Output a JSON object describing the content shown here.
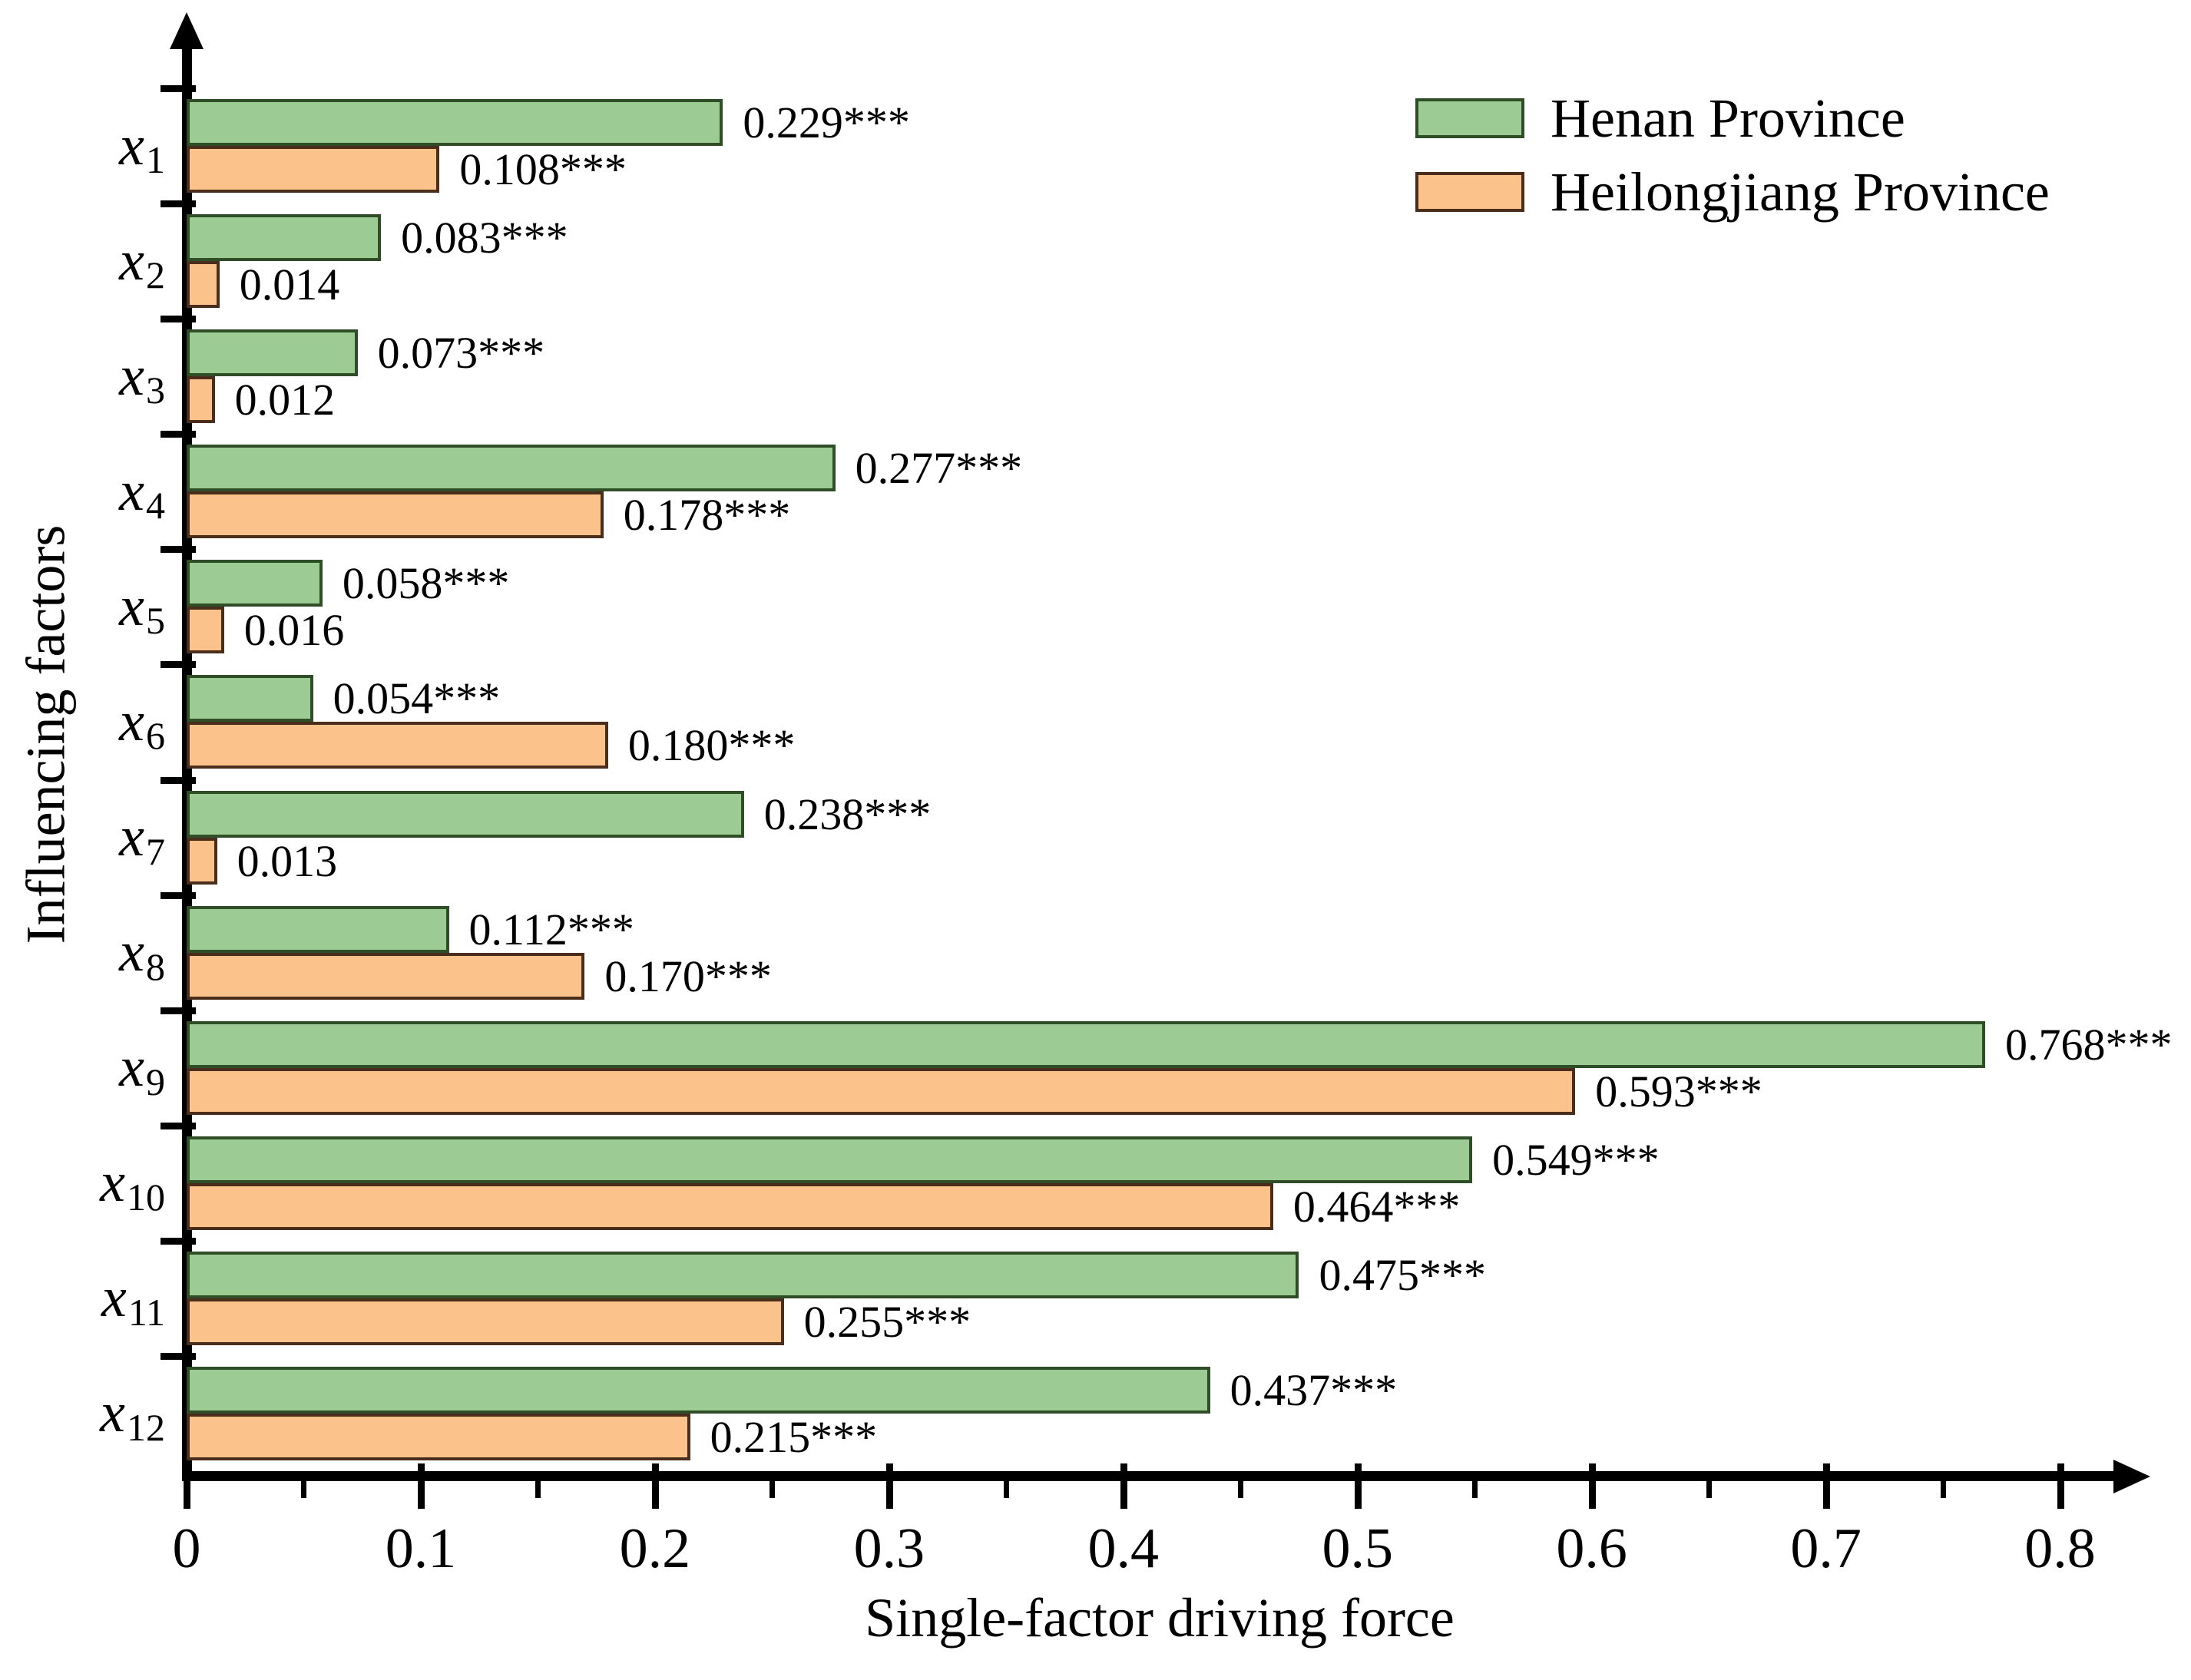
{
  "figure": {
    "background": "#ffffff",
    "axis_color": "#000000"
  },
  "chart_data": {
    "type": "bar",
    "orientation": "horizontal",
    "title": "",
    "xlabel": "Single-factor driving force",
    "ylabel": "Influencing factors",
    "xlim": [
      0,
      0.85
    ],
    "grid": false,
    "legend_position": "top-right",
    "x_major_ticks": [
      {
        "value": 0,
        "label": "0"
      },
      {
        "value": 0.1,
        "label": "0.1"
      },
      {
        "value": 0.2,
        "label": "0.2"
      },
      {
        "value": 0.3,
        "label": "0.3"
      },
      {
        "value": 0.4,
        "label": "0.4"
      },
      {
        "value": 0.5,
        "label": "0.5"
      },
      {
        "value": 0.6,
        "label": "0.6"
      },
      {
        "value": 0.7,
        "label": "0.7"
      },
      {
        "value": 0.8,
        "label": "0.8"
      }
    ],
    "x_minor_ticks": [
      0.05,
      0.15,
      0.25,
      0.35,
      0.45,
      0.55,
      0.65,
      0.75
    ],
    "categories": [
      {
        "base": "x",
        "sub": "1"
      },
      {
        "base": "x",
        "sub": "2"
      },
      {
        "base": "x",
        "sub": "3"
      },
      {
        "base": "x",
        "sub": "4"
      },
      {
        "base": "x",
        "sub": "5"
      },
      {
        "base": "x",
        "sub": "6"
      },
      {
        "base": "x",
        "sub": "7"
      },
      {
        "base": "x",
        "sub": "8"
      },
      {
        "base": "x",
        "sub": "9"
      },
      {
        "base": "x",
        "sub": "10"
      },
      {
        "base": "x",
        "sub": "11"
      },
      {
        "base": "x",
        "sub": "12"
      }
    ],
    "series": [
      {
        "name": "Henan Province",
        "fill": "#9ccb94",
        "border": "#2f4d27",
        "values": [
          0.229,
          0.083,
          0.073,
          0.277,
          0.058,
          0.054,
          0.238,
          0.112,
          0.768,
          0.549,
          0.475,
          0.437
        ],
        "labels": [
          "0.229***",
          "0.083***",
          "0.073***",
          "0.277***",
          "0.058***",
          "0.054***",
          "0.238***",
          "0.112***",
          "0.768***",
          "0.549***",
          "0.475***",
          "0.437***"
        ]
      },
      {
        "name": "Heilongjiang Province",
        "fill": "#fbc38b",
        "border": "#4b2d1b",
        "values": [
          0.108,
          0.014,
          0.012,
          0.178,
          0.016,
          0.18,
          0.013,
          0.17,
          0.593,
          0.464,
          0.255,
          0.215
        ],
        "labels": [
          "0.108***",
          "0.014",
          "0.012",
          "0.178***",
          "0.016",
          "0.180***",
          "0.013",
          "0.170***",
          "0.593***",
          "0.464***",
          "0.255***",
          "0.215***"
        ]
      }
    ]
  }
}
